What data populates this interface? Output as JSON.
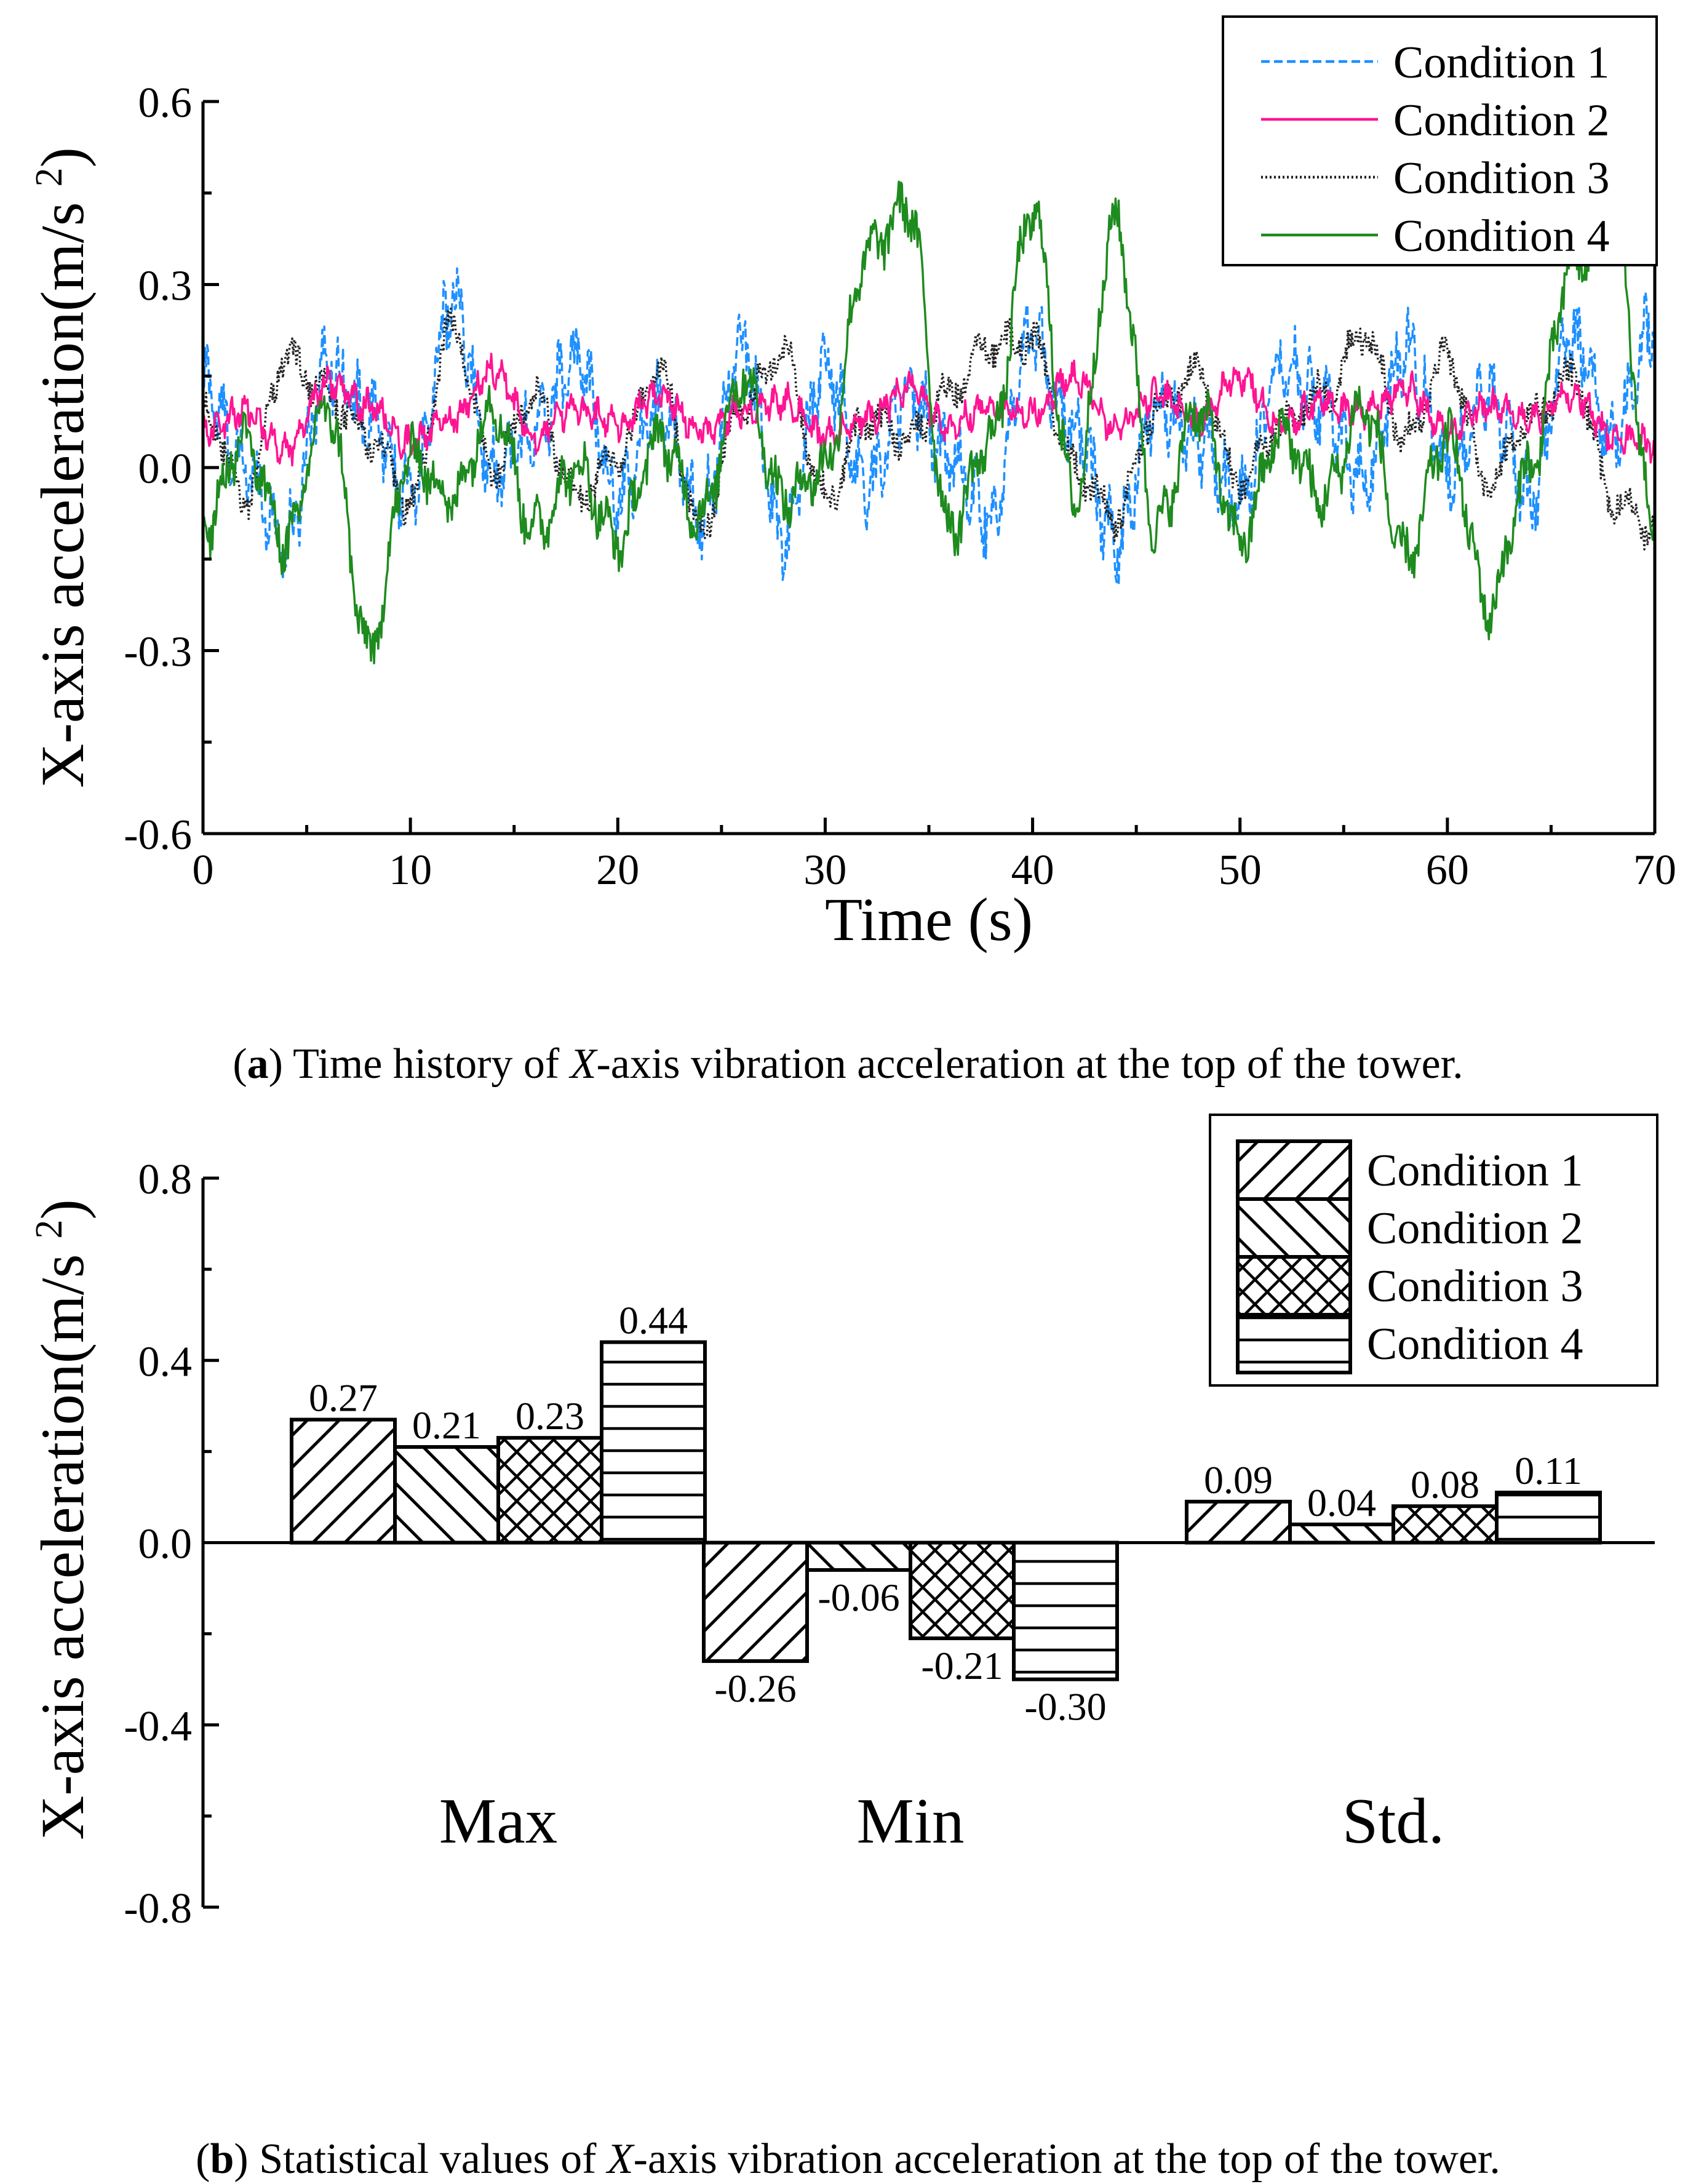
{
  "chart_data": [
    {
      "type": "line",
      "title": "",
      "xlabel": "Time (s)",
      "ylabel": "X-axis acceleration(m/s2)",
      "xlim": [
        0,
        70
      ],
      "ylim": [
        -0.6,
        0.6
      ],
      "x_ticks": [
        "0",
        "10",
        "20",
        "30",
        "40",
        "50",
        "60",
        "70"
      ],
      "y_ticks": [
        "-0.6",
        "-0.3",
        "0.0",
        "0.3",
        "0.6"
      ],
      "legend": [
        "Condition 1",
        "Condition 2",
        "Condition 3",
        "Condition 4"
      ],
      "legend_position": "top-right",
      "series": [
        {
          "name": "Condition 1",
          "color": "#1e90ff",
          "style": "dashed",
          "x": [
            0,
            2,
            4,
            6,
            8,
            10,
            12,
            14,
            16,
            18,
            20,
            22,
            24,
            26,
            28,
            30,
            32,
            34,
            36,
            38,
            40,
            42,
            44,
            46,
            48,
            50,
            52,
            54,
            56,
            58,
            60,
            62,
            64,
            66,
            68,
            70
          ],
          "y": [
            0.14,
            0.0,
            -0.12,
            0.17,
            0.08,
            -0.05,
            0.27,
            0.0,
            0.06,
            0.18,
            -0.05,
            0.1,
            -0.08,
            0.2,
            -0.12,
            0.16,
            -0.03,
            0.12,
            0.02,
            -0.08,
            0.21,
            0.06,
            -0.12,
            0.1,
            0.05,
            -0.06,
            0.18,
            0.1,
            -0.03,
            0.2,
            0.0,
            0.12,
            -0.05,
            0.21,
            0.05,
            0.24
          ]
        },
        {
          "name": "Condition 2",
          "color": "#ff1493",
          "style": "solid",
          "x": [
            0,
            2,
            4,
            6,
            8,
            10,
            12,
            14,
            16,
            18,
            20,
            22,
            24,
            26,
            28,
            30,
            32,
            34,
            36,
            38,
            40,
            42,
            44,
            46,
            48,
            50,
            52,
            54,
            56,
            58,
            60,
            62,
            64,
            66,
            68,
            70
          ],
          "y": [
            0.06,
            0.09,
            0.03,
            0.14,
            0.1,
            0.04,
            0.08,
            0.16,
            0.05,
            0.1,
            0.07,
            0.12,
            0.06,
            0.09,
            0.11,
            0.05,
            0.08,
            0.13,
            0.07,
            0.1,
            0.09,
            0.15,
            0.06,
            0.12,
            0.08,
            0.15,
            0.07,
            0.11,
            0.09,
            0.13,
            0.06,
            0.1,
            0.08,
            0.12,
            0.05,
            0.04
          ]
        },
        {
          "name": "Condition 3",
          "color": "#222222",
          "style": "dotted",
          "x": [
            0,
            2,
            4,
            6,
            8,
            10,
            12,
            14,
            16,
            18,
            20,
            22,
            24,
            26,
            28,
            30,
            32,
            34,
            36,
            38,
            40,
            42,
            44,
            46,
            48,
            50,
            52,
            54,
            56,
            58,
            60,
            62,
            64,
            66,
            68,
            70
          ],
          "y": [
            0.1,
            -0.05,
            0.18,
            0.12,
            0.05,
            -0.06,
            0.23,
            0.0,
            0.12,
            -0.05,
            0.02,
            0.16,
            -0.1,
            0.1,
            0.19,
            -0.05,
            0.08,
            0.05,
            0.12,
            0.2,
            0.21,
            0.0,
            -0.08,
            0.1,
            0.15,
            -0.02,
            0.07,
            0.12,
            0.22,
            0.05,
            0.18,
            -0.03,
            0.08,
            0.15,
            -0.05,
            -0.1
          ]
        },
        {
          "name": "Condition 4",
          "color": "#1e8b1e",
          "style": "solid",
          "x": [
            0,
            2,
            4,
            6,
            8,
            10,
            12,
            14,
            16,
            18,
            20,
            22,
            24,
            26,
            28,
            30,
            32,
            34,
            36,
            38,
            40,
            42,
            44,
            46,
            48,
            50,
            52,
            54,
            56,
            58,
            60,
            62,
            64,
            66,
            68,
            70
          ],
          "y": [
            -0.1,
            0.05,
            -0.12,
            0.1,
            -0.3,
            0.02,
            -0.05,
            0.1,
            -0.1,
            0.0,
            -0.12,
            0.05,
            -0.08,
            0.15,
            -0.05,
            0.0,
            0.35,
            0.43,
            -0.1,
            0.05,
            0.42,
            -0.05,
            0.4,
            -0.1,
            0.1,
            -0.12,
            0.06,
            -0.05,
            0.1,
            -0.15,
            0.05,
            -0.23,
            0.0,
            0.33,
            0.4,
            -0.1
          ]
        }
      ]
    },
    {
      "type": "bar",
      "title": "",
      "xlabel": "",
      "ylabel": "X-axis acceleration(m/s2)",
      "ylim": [
        -0.8,
        0.8
      ],
      "y_ticks": [
        "-0.8",
        "-0.4",
        "0.0",
        "0.4",
        "0.8"
      ],
      "categories": [
        "Max",
        "Min",
        "Std."
      ],
      "legend_position": "top-right",
      "series": [
        {
          "name": "Condition 1",
          "pattern": "diagonal-up",
          "values": [
            0.27,
            -0.26,
            0.09
          ],
          "labels": [
            "0.27",
            "-0.26",
            "0.09"
          ]
        },
        {
          "name": "Condition 2",
          "pattern": "diagonal-down",
          "values": [
            0.21,
            -0.06,
            0.04
          ],
          "labels": [
            "0.21",
            "-0.06",
            "0.04"
          ]
        },
        {
          "name": "Condition 3",
          "pattern": "crosshatch",
          "values": [
            0.23,
            -0.21,
            0.08
          ],
          "labels": [
            "0.23",
            "-0.21",
            "0.08"
          ]
        },
        {
          "name": "Condition 4",
          "pattern": "horizontal",
          "values": [
            0.44,
            -0.3,
            0.11
          ],
          "labels": [
            "0.44",
            "-0.30",
            "0.11"
          ]
        }
      ]
    }
  ],
  "captions": {
    "a": {
      "tag": "a",
      "pre": "Time history of ",
      "var": "X",
      "post": "-axis vibration acceleration at the top of the tower."
    },
    "b": {
      "tag": "b",
      "pre": "Statistical values of ",
      "var": "X",
      "post": "-axis vibration acceleration at the top of the tower."
    }
  }
}
